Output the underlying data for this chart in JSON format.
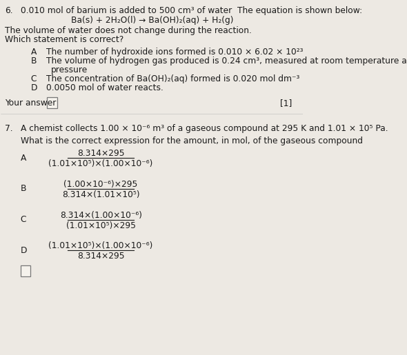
{
  "bg_color": "#ede9e3",
  "text_color": "#1a1a1a",
  "q6_number": "6.",
  "q6_intro": "0.010 mol of barium is added to 500 cm³ of water  The equation is shown below:",
  "q6_equation": "Ba(s) + 2H₂O(l) → Ba(OH)₂(aq) + H₂(g)",
  "q6_note1": "The volume of water does not change during the reaction.",
  "q6_note2": "Which statement is correct?",
  "q6_A": "The number of hydroxide ions formed is 0.010 × 6.02 × 10²³",
  "q6_B1": "The volume of hydrogen gas produced is 0.24 cm³, measured at room temperature and",
  "q6_B2": "pressure",
  "q6_C": "The concentration of Ba(OH)₂(aq) formed is 0.020 mol dm⁻³",
  "q6_D": "0.0050 mol of water reacts.",
  "your_answer_label": "Your answer",
  "marks": "[1]",
  "q7_number": "7.",
  "q7_intro": "A chemist collects 1.00 × 10⁻⁶ m³ of a gaseous compound at 295 K and 1.01 × 10⁵ Pa.",
  "q7_question": "What is the correct expression for the amount, in mol, of the gaseous compound",
  "q7_A_num": "8.314×295",
  "q7_A_den": "(1.01×10⁵)×(1.00×10⁻⁶)",
  "q7_B_num": "(1.00×10⁻⁶)×295",
  "q7_B_den": "8.314×(1.01×10⁵)",
  "q7_C_num": "8.314×(1.00×10⁻⁶)",
  "q7_C_den": "(1.01×10⁵)×295",
  "q7_D_num": "(1.01×10⁵)×(1.00×10⁻⁶)",
  "q7_D_den": "8.314×295"
}
